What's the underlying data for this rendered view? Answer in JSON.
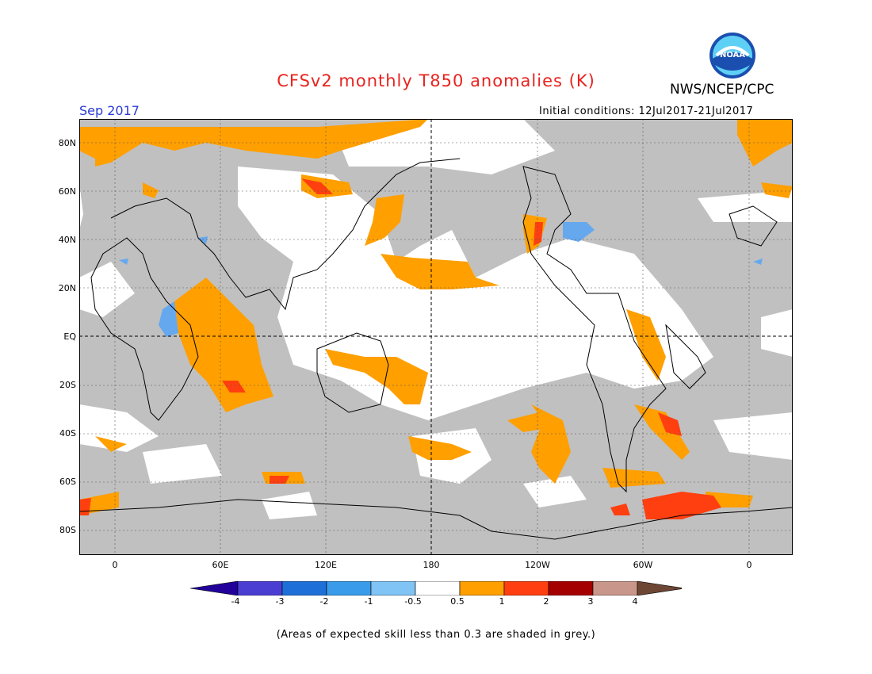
{
  "title": "CFSv2 monthly T850 anomalies (K)",
  "organization": "NWS/NCEP/CPC",
  "logo_text": "NOAA",
  "valid_month": "Sep 2017",
  "initial_conditions": "Initial conditions: 12Jul2017-21Jul2017",
  "lat_labels": [
    "80N",
    "60N",
    "40N",
    "20N",
    "EQ",
    "20S",
    "40S",
    "60S",
    "80S"
  ],
  "lon_labels": [
    "0",
    "60E",
    "120E",
    "180",
    "120W",
    "60W",
    "0"
  ],
  "colorbar": {
    "labels": [
      "-4",
      "-3",
      "-2",
      "-1",
      "-0.5",
      "0.5",
      "1",
      "2",
      "3",
      "4"
    ],
    "colors": [
      "#22019b",
      "#4a3ed2",
      "#1e6fd8",
      "#3a9bea",
      "#80c3f5",
      "#ffffff",
      "#ff9f00",
      "#ff3f0f",
      "#a50000",
      "#c8968a",
      "#6e4634"
    ]
  },
  "skill_note": "(Areas of expected skill less than 0.3 are shaded in grey.)",
  "colors": {
    "title": "#e8231f",
    "month": "#2a3bd4",
    "grey_mask": "#c0c0c0",
    "orange": "#ff9f00",
    "red": "#ff3f0f",
    "blue": "#66a8ee"
  }
}
